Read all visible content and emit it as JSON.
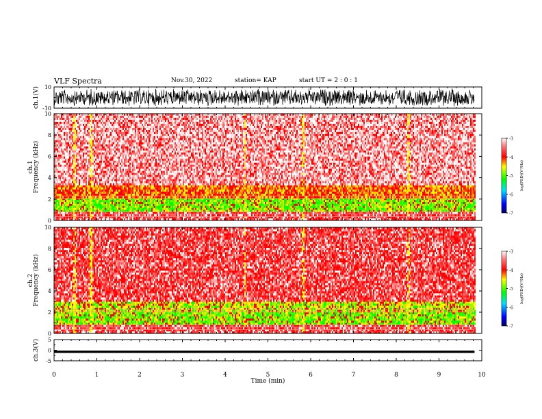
{
  "header": {
    "title": "VLF Spectra",
    "date": "Nov.30, 2022",
    "station": "station= KAP",
    "start": "start  UT =   2 : 0  : 1"
  },
  "chart_data": [
    {
      "type": "line",
      "name": "waveform-ch1",
      "ylabel": "ch.1(V)",
      "ylim": [
        -10,
        10
      ],
      "y_ticklabels": [
        "10",
        "-10"
      ],
      "xlim": [
        0,
        10
      ],
      "x_data_extent": [
        0,
        9.83
      ],
      "description": "dense noise-like waveform filling most of the range"
    },
    {
      "type": "heatmap",
      "name": "spectrogram-ch1",
      "ylabel": "Frequency (kHz)",
      "ylabel2": "ch.1",
      "ylim": [
        0,
        10
      ],
      "y_ticklabels": [
        "0",
        "2",
        "4",
        "6",
        "8",
        "10"
      ],
      "xlim": [
        0,
        10
      ],
      "x_data_extent": [
        0,
        9.83
      ],
      "colorbar": {
        "label": "log(PSD)(V²/Hz)",
        "range": [
          -7,
          -3
        ],
        "ticklabels": [
          "-3",
          "-4",
          "-5",
          "-6",
          "-7"
        ],
        "colors": [
          "#000080",
          "#0000ff",
          "#00ffff",
          "#00ff00",
          "#ffff00",
          "#ff0000",
          "#ff6060",
          "#ffffff"
        ]
      },
      "bands": [
        {
          "f": [
            0.0,
            0.8
          ],
          "level": "red/white lines"
        },
        {
          "f": [
            1.0,
            2.1
          ],
          "level": "green/yellow (about -5)"
        },
        {
          "f": [
            2.1,
            3.3
          ],
          "level": "yellow/red (about -4.5)"
        },
        {
          "f": [
            3.3,
            10.0
          ],
          "level": "red/white (about -3.5)"
        }
      ],
      "bright_events_min": [
        0.45,
        0.85,
        4.45,
        5.8,
        8.28
      ]
    },
    {
      "type": "heatmap",
      "name": "spectrogram-ch2",
      "ylabel": "Frequency (kHz)",
      "ylabel2": "ch.2",
      "ylim": [
        0,
        10
      ],
      "y_ticklabels": [
        "0",
        "2",
        "4",
        "6",
        "8",
        "10"
      ],
      "xlim": [
        0,
        10
      ],
      "x_data_extent": [
        0,
        9.83
      ],
      "colorbar": {
        "label": "log(PSD)(V²/Hz)",
        "range": [
          -7,
          -3
        ],
        "ticklabels": [
          "-3",
          "-4",
          "-5",
          "-6",
          "-7"
        ]
      },
      "bands": [
        {
          "f": [
            0.0,
            0.8
          ],
          "level": "red/white lines"
        },
        {
          "f": [
            0.8,
            2.0
          ],
          "level": "green/yellow (about -5)"
        },
        {
          "f": [
            2.0,
            3.0
          ],
          "level": "yellow/green (about -4.7)"
        },
        {
          "f": [
            3.0,
            10.0
          ],
          "level": "red/white (about -3.5)"
        }
      ],
      "bright_events_min": [
        0.45,
        0.85,
        4.45,
        5.8,
        8.28
      ]
    },
    {
      "type": "line",
      "name": "waveform-ch3",
      "ylabel": "ch.3(V)",
      "ylim": [
        -5,
        5
      ],
      "y_ticklabels": [
        "5",
        "0",
        "-5"
      ],
      "xlim": [
        0,
        10
      ],
      "x_data_extent": [
        0,
        9.83
      ],
      "xlabel": "Time (min)",
      "x_ticklabels": [
        "0",
        "1",
        "2",
        "3",
        "4",
        "5",
        "6",
        "7",
        "8",
        "9",
        "10"
      ],
      "description": "narrow band of values between about -1.3 and -0.2 V"
    }
  ]
}
